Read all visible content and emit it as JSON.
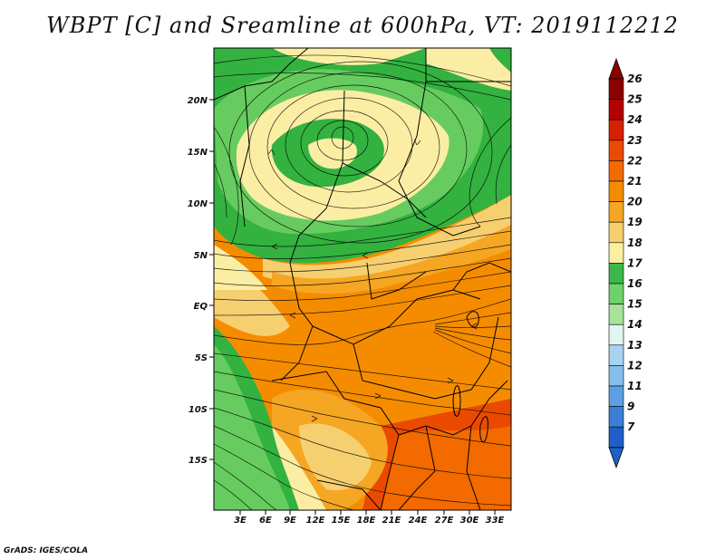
{
  "title": "WBPT [C] and Sreamline at 600hPa, VT: 2019112212",
  "footer": "GrADS: IGES/COLA",
  "lat_labels": [
    "20N",
    "15N",
    "10N",
    "5N",
    "EQ",
    "5S",
    "10S",
    "15S"
  ],
  "lon_labels": [
    "3E",
    "6E",
    "9E",
    "12E",
    "15E",
    "18E",
    "21E",
    "24E",
    "27E",
    "30E",
    "33E"
  ],
  "colorbar": {
    "levels": [
      "26",
      "25",
      "24",
      "23",
      "22",
      "21",
      "20",
      "19",
      "18",
      "17",
      "16",
      "15",
      "14",
      "13",
      "12",
      "11",
      "9",
      "7"
    ],
    "colors": [
      "#8b0000",
      "#b50000",
      "#d62000",
      "#ea4a00",
      "#f26a00",
      "#f58c00",
      "#f5a623",
      "#f7cf6e",
      "#fbf0a0",
      "#3cb84a",
      "#6fd16b",
      "#a6e39a",
      "#e0f6ef",
      "#a8d3f0",
      "#86bdec",
      "#5e9fe3",
      "#3b7fd8",
      "#1f5fc8"
    ],
    "top_arrow_color": "#8b0000",
    "bottom_arrow_color": "#1f5fc8"
  },
  "field_colors": {
    "green_dark": "#33b240",
    "green_light": "#67cc5f",
    "yellow": "#fbeea4",
    "yellow_orange": "#f6cf70",
    "orange_light": "#f5a623",
    "orange": "#f58c00",
    "orange_dark": "#f26a00",
    "red_orange": "#ea4a00"
  }
}
